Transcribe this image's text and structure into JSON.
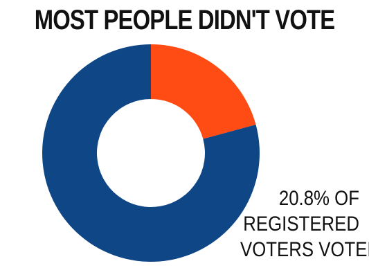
{
  "chart_data": {
    "type": "pie",
    "title": "MOST PEOPLE DIDN'T VOTE",
    "subtitle": "",
    "donut": true,
    "slices": [
      {
        "value": 20.8,
        "color": "#ff4b14"
      },
      {
        "value": 79.2,
        "color": "#0e4686"
      }
    ],
    "annotation": [
      "20.8% OF",
      "REGISTERED",
      "VOTERS VOTED"
    ]
  }
}
